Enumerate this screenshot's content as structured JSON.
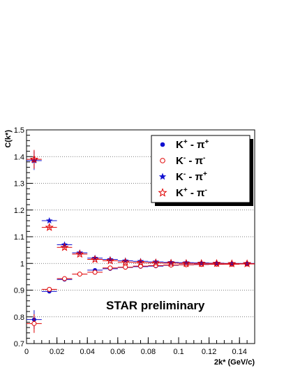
{
  "chart_data": {
    "type": "scatter",
    "xlabel": "2k* (GeV/c)",
    "ylabel": "C(k*)",
    "xlim": [
      0,
      0.15
    ],
    "ylim": [
      0.7,
      1.5
    ],
    "xticks": [
      "0",
      "0.02",
      "0.04",
      "0.06",
      "0.08",
      "0.1",
      "0.12",
      "0.14"
    ],
    "yticks": [
      "0.7",
      "0.8",
      "0.9",
      "1",
      "1.1",
      "1.2",
      "1.3",
      "1.4",
      "1.5"
    ],
    "grid": "horizontal",
    "legend_position": "top-right",
    "annotation": "STAR preliminary",
    "series": [
      {
        "name": "K+ - π+",
        "label": {
          "a": "K",
          "asup": "+",
          "sep": " - π",
          "bsup": "+"
        },
        "marker": "filled-circle",
        "color": "#1010d0",
        "x": [
          0.005,
          0.015,
          0.025,
          0.035,
          0.045,
          0.055,
          0.065,
          0.075,
          0.085,
          0.095,
          0.105,
          0.115,
          0.125,
          0.135,
          0.145
        ],
        "y": [
          0.79,
          0.895,
          0.94,
          0.96,
          0.975,
          0.98,
          0.985,
          0.988,
          0.99,
          0.993,
          0.995,
          0.996,
          0.997,
          0.998,
          0.998
        ]
      },
      {
        "name": "K- - π-",
        "label": {
          "a": "K",
          "asup": "-",
          "sep": " - π",
          "bsup": "-"
        },
        "marker": "open-circle",
        "color": "#e00000",
        "x": [
          0.005,
          0.015,
          0.025,
          0.035,
          0.045,
          0.055,
          0.065,
          0.075,
          0.085,
          0.095,
          0.105,
          0.115,
          0.125,
          0.135,
          0.145
        ],
        "y": [
          0.775,
          0.903,
          0.943,
          0.96,
          0.967,
          0.983,
          0.986,
          0.99,
          0.992,
          0.994,
          0.995,
          0.996,
          0.997,
          0.997,
          0.998
        ]
      },
      {
        "name": "K- - π+",
        "label": {
          "a": "K",
          "asup": "-",
          "sep": " - π",
          "bsup": "+"
        },
        "marker": "filled-star",
        "color": "#1010d0",
        "x": [
          0.005,
          0.015,
          0.025,
          0.035,
          0.045,
          0.055,
          0.065,
          0.075,
          0.085,
          0.095,
          0.105,
          0.115,
          0.125,
          0.135,
          0.145
        ],
        "y": [
          1.385,
          1.16,
          1.07,
          1.04,
          1.02,
          1.015,
          1.01,
          1.008,
          1.006,
          1.004,
          1.003,
          1.002,
          1.001,
          1.0,
          1.0
        ]
      },
      {
        "name": "K+ - π-",
        "label": {
          "a": "K",
          "asup": "+",
          "sep": " - π",
          "bsup": "-"
        },
        "marker": "open-star",
        "color": "#e00000",
        "x": [
          0.005,
          0.015,
          0.025,
          0.035,
          0.045,
          0.055,
          0.065,
          0.075,
          0.085,
          0.095,
          0.105,
          0.115,
          0.125,
          0.135,
          0.145
        ],
        "y": [
          1.39,
          1.135,
          1.06,
          1.035,
          1.015,
          1.01,
          1.005,
          1.003,
          1.002,
          1.001,
          1.0,
          1.0,
          1.0,
          0.999,
          0.999
        ]
      }
    ],
    "y_errors": [
      0.035,
      0.006,
      0.004,
      0.003,
      0.003,
      0.002,
      0.002,
      0.002,
      0.002,
      0.002,
      0.002,
      0.002,
      0.002,
      0.002,
      0.002
    ],
    "x_halfwidth": 0.005
  }
}
